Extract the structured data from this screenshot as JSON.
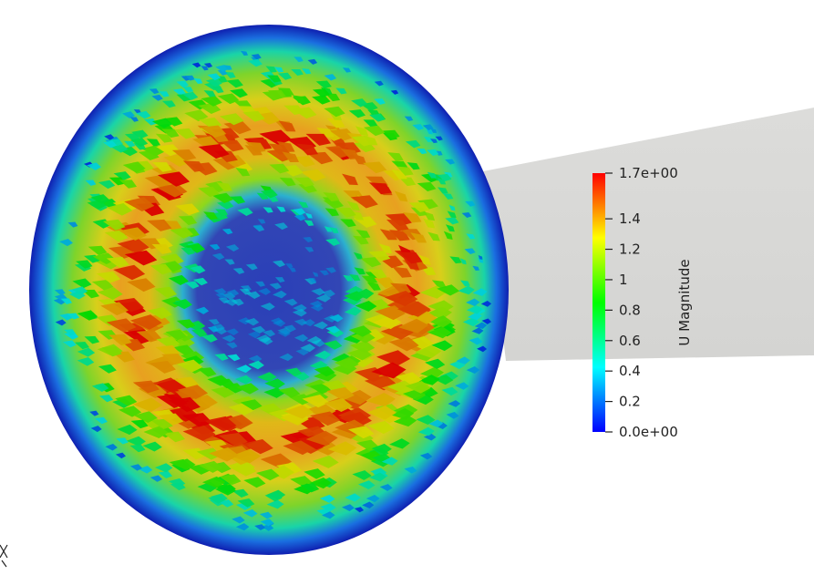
{
  "scene": {
    "background": "#ffffff",
    "geometry_color": "#d9d9d7",
    "glyph_type": "arrow"
  },
  "colorbar": {
    "title": "U Magnitude",
    "range": [
      0,
      1.7
    ],
    "colormap": [
      "#0000ff",
      "#00ffff",
      "#00ff00",
      "#ffff00",
      "#ff0000"
    ],
    "ticks": [
      {
        "value": 1.7,
        "label": "1.7e+00"
      },
      {
        "value": 1.4,
        "label": "1.4"
      },
      {
        "value": 1.2,
        "label": "1.2"
      },
      {
        "value": 1.0,
        "label": "1"
      },
      {
        "value": 0.8,
        "label": "0.8"
      },
      {
        "value": 0.6,
        "label": "0.6"
      },
      {
        "value": 0.4,
        "label": "0.4"
      },
      {
        "value": 0.2,
        "label": "0.2"
      },
      {
        "value": 0.0,
        "label": "0.0e+00"
      }
    ]
  }
}
